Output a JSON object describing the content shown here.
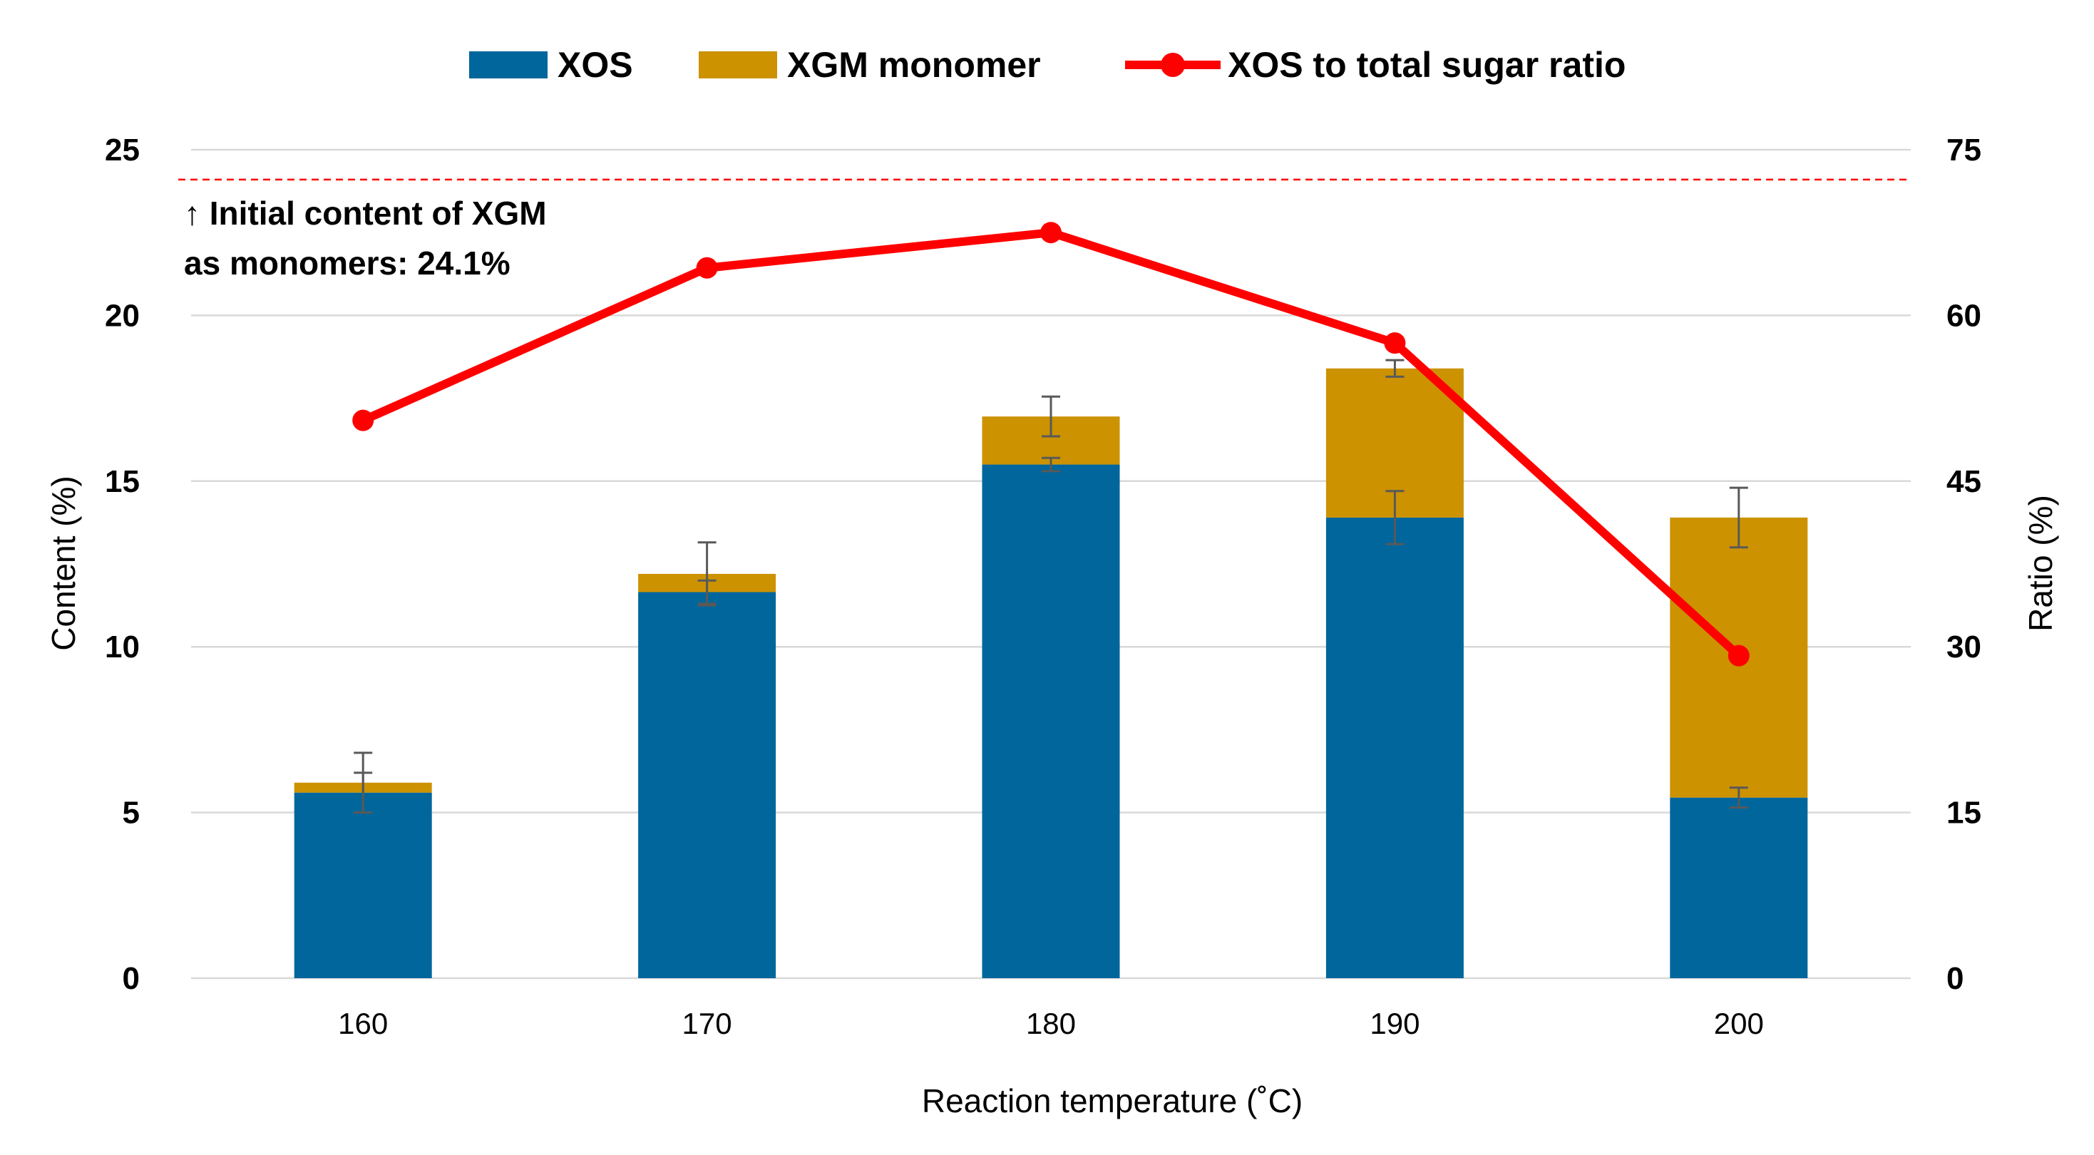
{
  "chart_data": {
    "type": "bar",
    "stacked": true,
    "categories": [
      "160",
      "170",
      "180",
      "190",
      "200"
    ],
    "series": [
      {
        "name": "XOS",
        "axis": "left",
        "kind": "bar",
        "color": "#00669C",
        "values": [
          5.6,
          11.65,
          15.5,
          13.9,
          5.45
        ],
        "error": [
          0.6,
          0.35,
          0.2,
          0.8,
          0.3
        ]
      },
      {
        "name": "XGM monomer",
        "axis": "left",
        "kind": "bar",
        "color": "#CC9200",
        "values": [
          0.3,
          0.55,
          1.45,
          4.5,
          8.45
        ],
        "error": [
          0.9,
          0.95,
          0.6,
          0.25,
          0.9
        ]
      },
      {
        "name": "XOS to total sugar ratio",
        "axis": "right",
        "kind": "line",
        "color": "#FF0000",
        "values": [
          50.5,
          64.3,
          67.5,
          57.5,
          29.2
        ]
      }
    ],
    "xlabel": "Reaction temperature (˚C)",
    "ylabel": "Content (%)",
    "y2label": "Ratio (%)",
    "ylim": [
      0,
      25
    ],
    "y2lim": [
      0,
      75
    ],
    "yticks": [
      "0",
      "5",
      "10",
      "15",
      "20",
      "25"
    ],
    "y2ticks": [
      "0",
      "15",
      "30",
      "45",
      "60",
      "75"
    ],
    "grid": true,
    "legend_position": "top",
    "reference_line": {
      "value": 24.1,
      "axis": "left",
      "color": "#FF0000",
      "style": "dashed"
    },
    "annotation_lines": [
      "↑ Initial content of XGM",
      "as monomers:  24.1%"
    ]
  }
}
